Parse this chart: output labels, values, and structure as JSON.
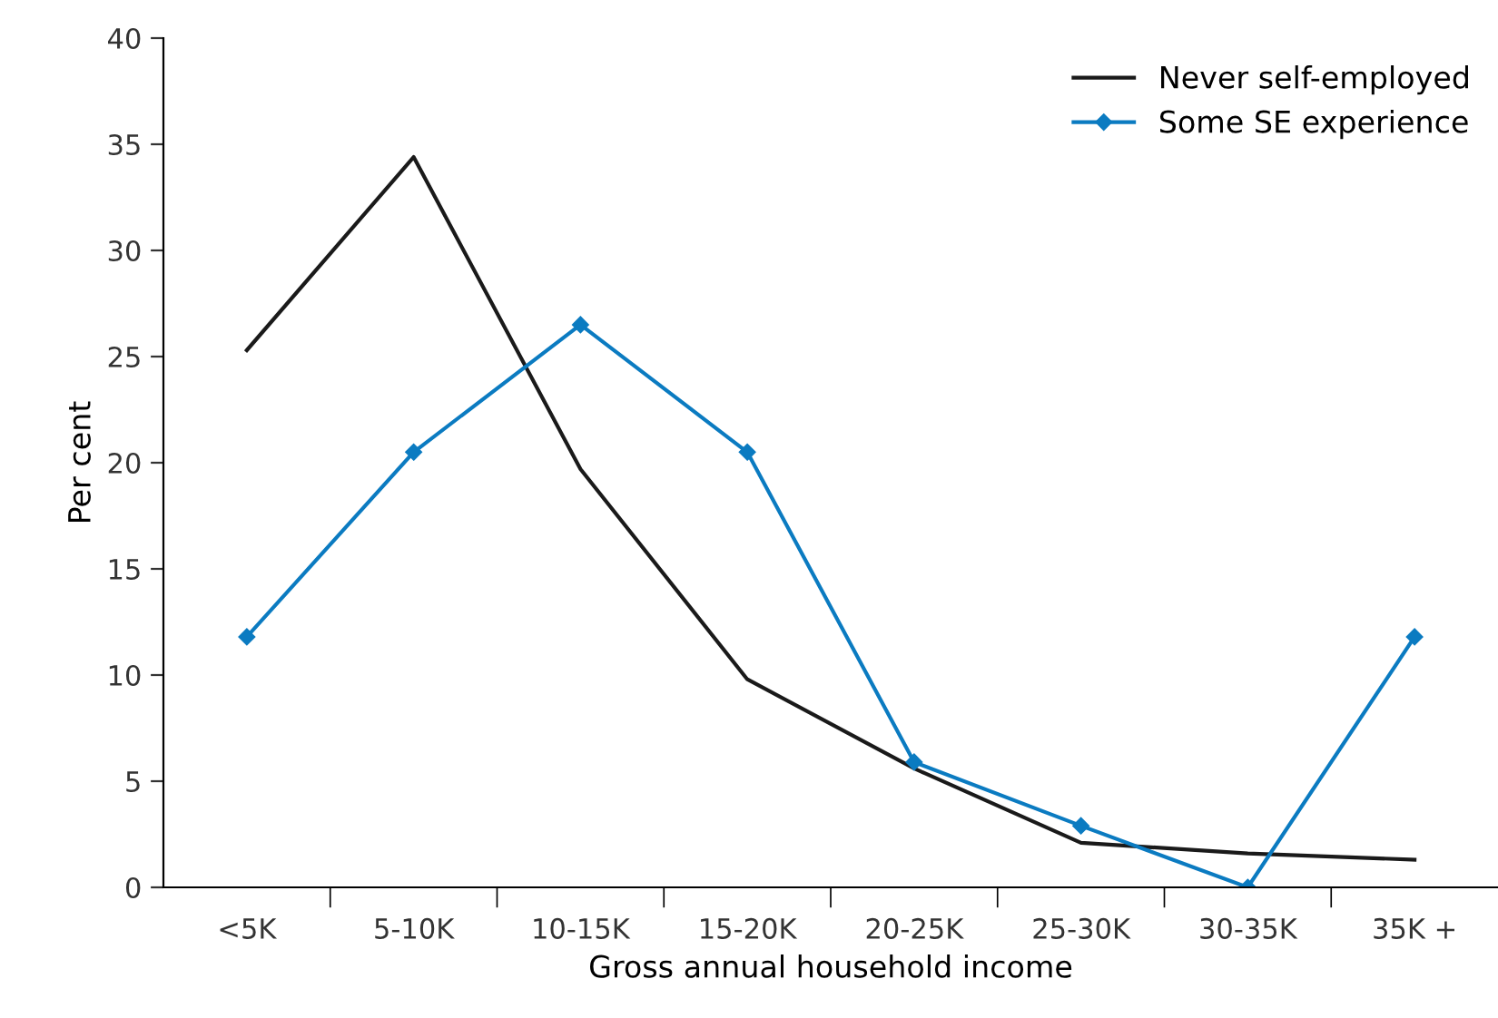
{
  "chart_data": {
    "type": "line",
    "xlabel": "Gross annual household income",
    "ylabel": "Per cent",
    "categories": [
      "<5K",
      "5-10K",
      "10-15K",
      "15-20K",
      "20-25K",
      "25-30K",
      "30-35K",
      "35K +"
    ],
    "series": [
      {
        "name": "Never self-employed",
        "color": "#1a1a1a",
        "marker": "none",
        "values": [
          25.3,
          34.4,
          19.7,
          9.8,
          5.6,
          2.1,
          1.6,
          1.3
        ]
      },
      {
        "name": "Some SE experience",
        "color": "#0b7bc1",
        "marker": "diamond",
        "values": [
          11.8,
          20.5,
          26.5,
          20.5,
          5.9,
          2.9,
          0,
          11.8
        ]
      }
    ],
    "ylim": [
      0,
      40
    ],
    "yticks": [
      0,
      5,
      10,
      15,
      20,
      25,
      30,
      35,
      40
    ],
    "grid": false,
    "legend": "top right"
  }
}
